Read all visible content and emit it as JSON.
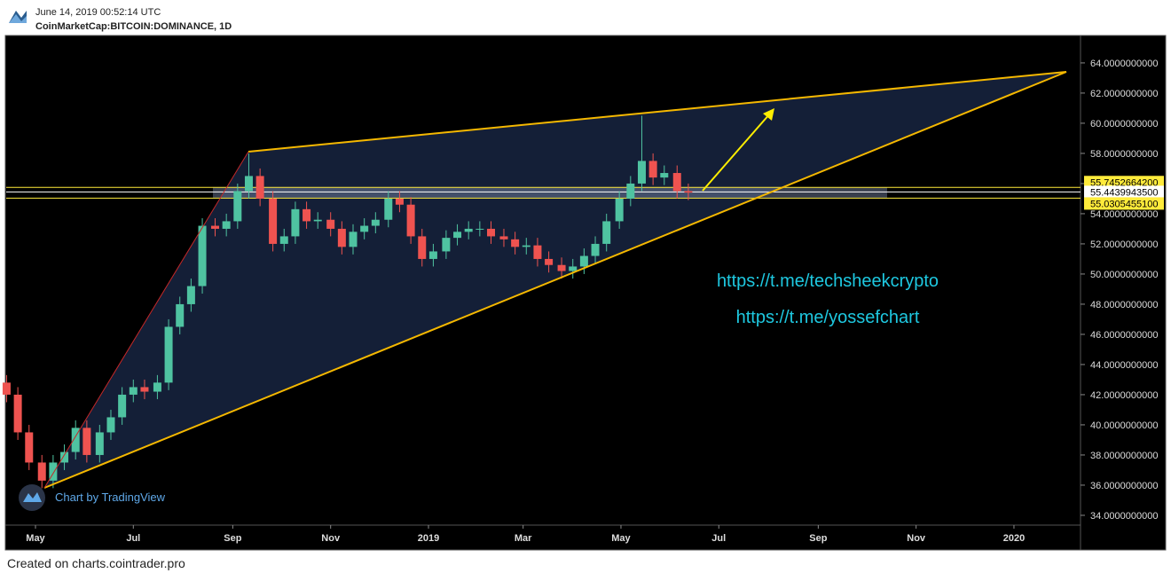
{
  "header": {
    "timestamp": "June 14, 2019 00:52:14 UTC",
    "symbol": "CoinMarketCap:BITCOIN:DOMINANCE, 1D"
  },
  "footer": "Created on charts.cointrader.pro",
  "watermark": "Chart by TradingView",
  "annotations": [
    "https://t.me/techsheekcrypto",
    "https://t.me/yossefchart"
  ],
  "chart_data": {
    "type": "candlestick",
    "x": [
      -18,
      -11,
      -4,
      4,
      11,
      18,
      25,
      32,
      40,
      47,
      54,
      61,
      68,
      76,
      83,
      90,
      97,
      104,
      112,
      119,
      126,
      133,
      140,
      148,
      155,
      162,
      169,
      176,
      184,
      191,
      198,
      205,
      212,
      220,
      227,
      234,
      241,
      248,
      256,
      263,
      270,
      277,
      284,
      292,
      299,
      306,
      313,
      320,
      328,
      335,
      342,
      349,
      356,
      364,
      371,
      378,
      385,
      392,
      400,
      407
    ],
    "open": [
      42.8,
      42.0,
      39.5,
      37.5,
      36.3,
      37.5,
      38.2,
      39.8,
      38.0,
      39.5,
      40.5,
      42.0,
      42.5,
      42.2,
      42.8,
      46.5,
      48.0,
      49.2,
      53.2,
      53.0,
      53.5,
      55.5,
      56.5,
      55.0,
      52.0,
      52.5,
      54.3,
      53.5,
      53.6,
      53.0,
      51.8,
      52.8,
      53.2,
      53.6,
      55.0,
      54.6,
      52.5,
      51.0,
      51.5,
      52.4,
      52.8,
      53.0,
      53.0,
      52.5,
      52.3,
      51.8,
      51.9,
      51.0,
      50.6,
      50.2,
      50.5,
      51.2,
      52.0,
      53.5,
      55.0,
      56.0,
      57.5,
      56.4,
      56.7,
      55.5
    ],
    "high": [
      43.3,
      42.5,
      40.0,
      38.0,
      38.0,
      38.7,
      40.3,
      40.3,
      40.0,
      41.0,
      42.5,
      43.0,
      43.0,
      43.3,
      47.0,
      48.5,
      49.7,
      53.7,
      53.7,
      54.0,
      56.0,
      58.0,
      57.0,
      55.5,
      53.0,
      54.8,
      54.8,
      54.1,
      54.1,
      53.5,
      53.3,
      53.7,
      54.1,
      55.5,
      55.5,
      55.1,
      53.0,
      52.0,
      52.9,
      53.3,
      53.5,
      53.5,
      53.5,
      53.0,
      52.8,
      52.4,
      52.4,
      51.5,
      51.1,
      51.0,
      51.7,
      52.5,
      54.0,
      55.5,
      56.5,
      60.5,
      58.0,
      57.2,
      57.2,
      56.0
    ],
    "low": [
      41.5,
      39.0,
      37.0,
      35.8,
      35.8,
      37.0,
      37.7,
      37.5,
      37.5,
      39.0,
      40.0,
      41.5,
      41.7,
      41.7,
      42.3,
      46.0,
      47.5,
      48.7,
      52.5,
      52.5,
      53.0,
      55.0,
      54.5,
      51.5,
      51.5,
      52.0,
      53.0,
      53.0,
      52.5,
      51.3,
      51.3,
      52.3,
      52.7,
      53.1,
      54.1,
      52.0,
      50.5,
      50.5,
      51.0,
      51.9,
      52.3,
      52.5,
      52.0,
      51.8,
      51.3,
      51.3,
      50.5,
      50.1,
      49.7,
      49.7,
      50.0,
      50.7,
      51.5,
      53.0,
      54.5,
      55.5,
      55.9,
      55.9,
      55.0,
      54.9
    ],
    "close": [
      42.0,
      39.5,
      37.5,
      36.3,
      37.5,
      38.2,
      39.8,
      38.0,
      39.5,
      40.5,
      42.0,
      42.5,
      42.2,
      42.8,
      46.5,
      48.0,
      49.2,
      53.2,
      53.0,
      53.5,
      55.5,
      56.5,
      55.0,
      52.0,
      52.5,
      54.3,
      53.5,
      53.6,
      53.0,
      51.8,
      52.8,
      53.2,
      53.6,
      55.0,
      54.6,
      52.5,
      51.0,
      51.5,
      52.4,
      52.8,
      53.0,
      53.0,
      52.5,
      52.3,
      51.8,
      51.9,
      51.0,
      50.6,
      50.2,
      50.5,
      51.2,
      52.0,
      53.5,
      55.0,
      56.0,
      57.5,
      56.4,
      56.7,
      55.5,
      55.4
    ],
    "up_color": "#4fc3a1",
    "down_color": "#ef5350",
    "xlim": [
      -18.25,
      651.5
    ],
    "xticks": [
      {
        "value": 0,
        "label": "May"
      },
      {
        "value": 61,
        "label": "Jul"
      },
      {
        "value": 123,
        "label": "Sep"
      },
      {
        "value": 184,
        "label": "Nov"
      },
      {
        "value": 245,
        "label": "2019"
      },
      {
        "value": 304,
        "label": "Mar"
      },
      {
        "value": 365,
        "label": "May"
      },
      {
        "value": 426,
        "label": "Jul"
      },
      {
        "value": 488,
        "label": "Sep"
      },
      {
        "value": 549,
        "label": "Nov"
      },
      {
        "value": 610,
        "label": "2020"
      }
    ],
    "ylim": [
      33.35,
      65.76
    ],
    "yticks": [
      {
        "value": 34,
        "label": "34.0000000000"
      },
      {
        "value": 36,
        "label": "36.0000000000"
      },
      {
        "value": 38,
        "label": "38.0000000000"
      },
      {
        "value": 40,
        "label": "40.0000000000"
      },
      {
        "value": 42,
        "label": "42.0000000000"
      },
      {
        "value": 44,
        "label": "44.0000000000"
      },
      {
        "value": 46,
        "label": "46.0000000000"
      },
      {
        "value": 48,
        "label": "48.0000000000"
      },
      {
        "value": 50,
        "label": "50.0000000000"
      },
      {
        "value": 52,
        "label": "52.0000000000"
      },
      {
        "value": 54,
        "label": "54.0000000000"
      },
      {
        "value": 56,
        "label": "56.0000000000"
      },
      {
        "value": 58,
        "label": "58.0000000000"
      },
      {
        "value": 60,
        "label": "60.0000000000"
      },
      {
        "value": 62,
        "label": "62.0000000000"
      },
      {
        "value": 64,
        "label": "64.0000000000"
      }
    ],
    "levels": [
      {
        "value": 55.74526642,
        "label": "55.7452664200",
        "color": "#ffeb3b"
      },
      {
        "value": 55.44399435,
        "label": "55.4439943500",
        "color": "#ffffff"
      },
      {
        "value": 55.03054551,
        "label": "55.0305455100",
        "color": "#ffeb3b"
      }
    ]
  }
}
